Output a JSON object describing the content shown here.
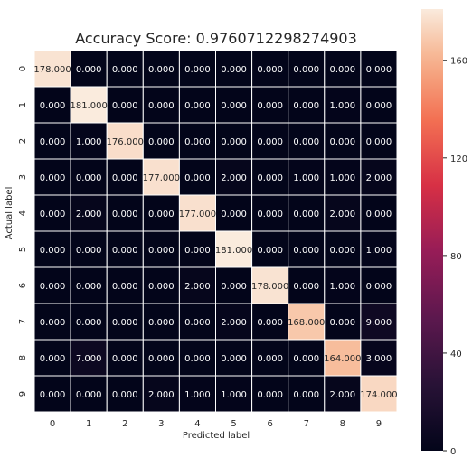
{
  "chart_data": {
    "type": "heatmap",
    "title": "Accuracy Score: 0.9760712298274903",
    "xlabel": "Predicted label",
    "ylabel": "Actual label",
    "x_categories": [
      "0",
      "1",
      "2",
      "3",
      "4",
      "5",
      "6",
      "7",
      "8",
      "9"
    ],
    "y_categories": [
      "0",
      "1",
      "2",
      "3",
      "4",
      "5",
      "6",
      "7",
      "8",
      "9"
    ],
    "values": [
      [
        178,
        0,
        0,
        0,
        0,
        0,
        0,
        0,
        0,
        0
      ],
      [
        0,
        181,
        0,
        0,
        0,
        0,
        0,
        0,
        1,
        0
      ],
      [
        0,
        1,
        176,
        0,
        0,
        0,
        0,
        0,
        0,
        0
      ],
      [
        0,
        0,
        0,
        177,
        0,
        2,
        0,
        1,
        1,
        2
      ],
      [
        0,
        2,
        0,
        0,
        177,
        0,
        0,
        0,
        2,
        0
      ],
      [
        0,
        0,
        0,
        0,
        0,
        181,
        0,
        0,
        0,
        1
      ],
      [
        0,
        0,
        0,
        0,
        2,
        0,
        178,
        0,
        1,
        0
      ],
      [
        0,
        0,
        0,
        0,
        0,
        2,
        0,
        168,
        0,
        9
      ],
      [
        0,
        7,
        0,
        0,
        0,
        0,
        0,
        0,
        164,
        3
      ],
      [
        0,
        0,
        0,
        2,
        1,
        1,
        0,
        0,
        2,
        174
      ]
    ],
    "value_format": "0.000",
    "colorbar": {
      "ticks": [
        0,
        40,
        80,
        120,
        160
      ],
      "range": [
        0,
        181
      ],
      "colormap": "rocket"
    },
    "grid_line_color": "#ffffff"
  }
}
